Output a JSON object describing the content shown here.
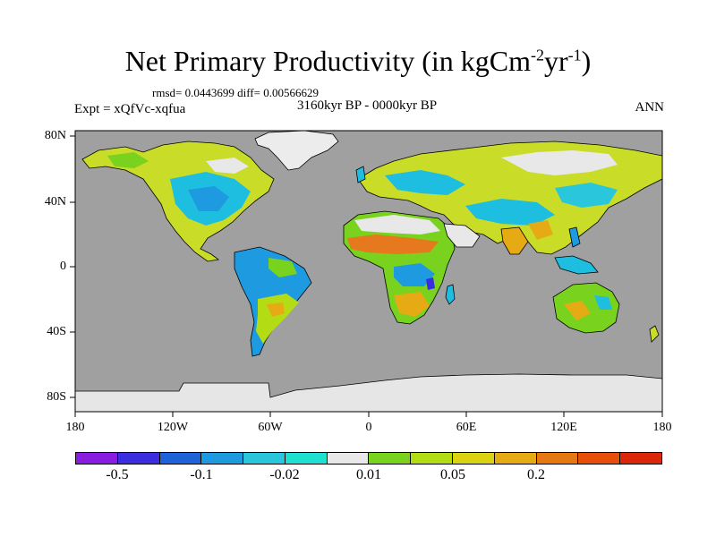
{
  "title": {
    "prefix": "Net Primary Productivity (in kgCm",
    "sup1": "-2",
    "mid": "yr",
    "sup2": "-1",
    "suffix": ")"
  },
  "stats": "rmsd= 0.0443699 diff= 0.00566629",
  "experiment": "Expt = xQfVc-xqfua",
  "period": "3160kyr BP - 0000kyr BP",
  "season": "ANN",
  "map": {
    "ocean_color": "#a0a0a0",
    "ice_color": "#e6e6e6",
    "x_ticks": [
      "180",
      "120W",
      "60W",
      "0",
      "60E",
      "120E",
      "180"
    ],
    "y_ticks": [
      "80N",
      "40N",
      "0",
      "40S",
      "80S"
    ]
  },
  "colorbar": {
    "colors": [
      "#8a1ee0",
      "#3a2ee0",
      "#1e64d8",
      "#1e9ae0",
      "#2ac6dc",
      "#1ee0d0",
      "#e8e8e8",
      "#78d21e",
      "#b4dc14",
      "#dcd214",
      "#e6aa14",
      "#e67814",
      "#e6500a",
      "#dc280a"
    ],
    "labels": [
      "-0.5",
      "-0.1",
      "-0.02",
      "0.01",
      "0.05",
      "0.2"
    ]
  }
}
